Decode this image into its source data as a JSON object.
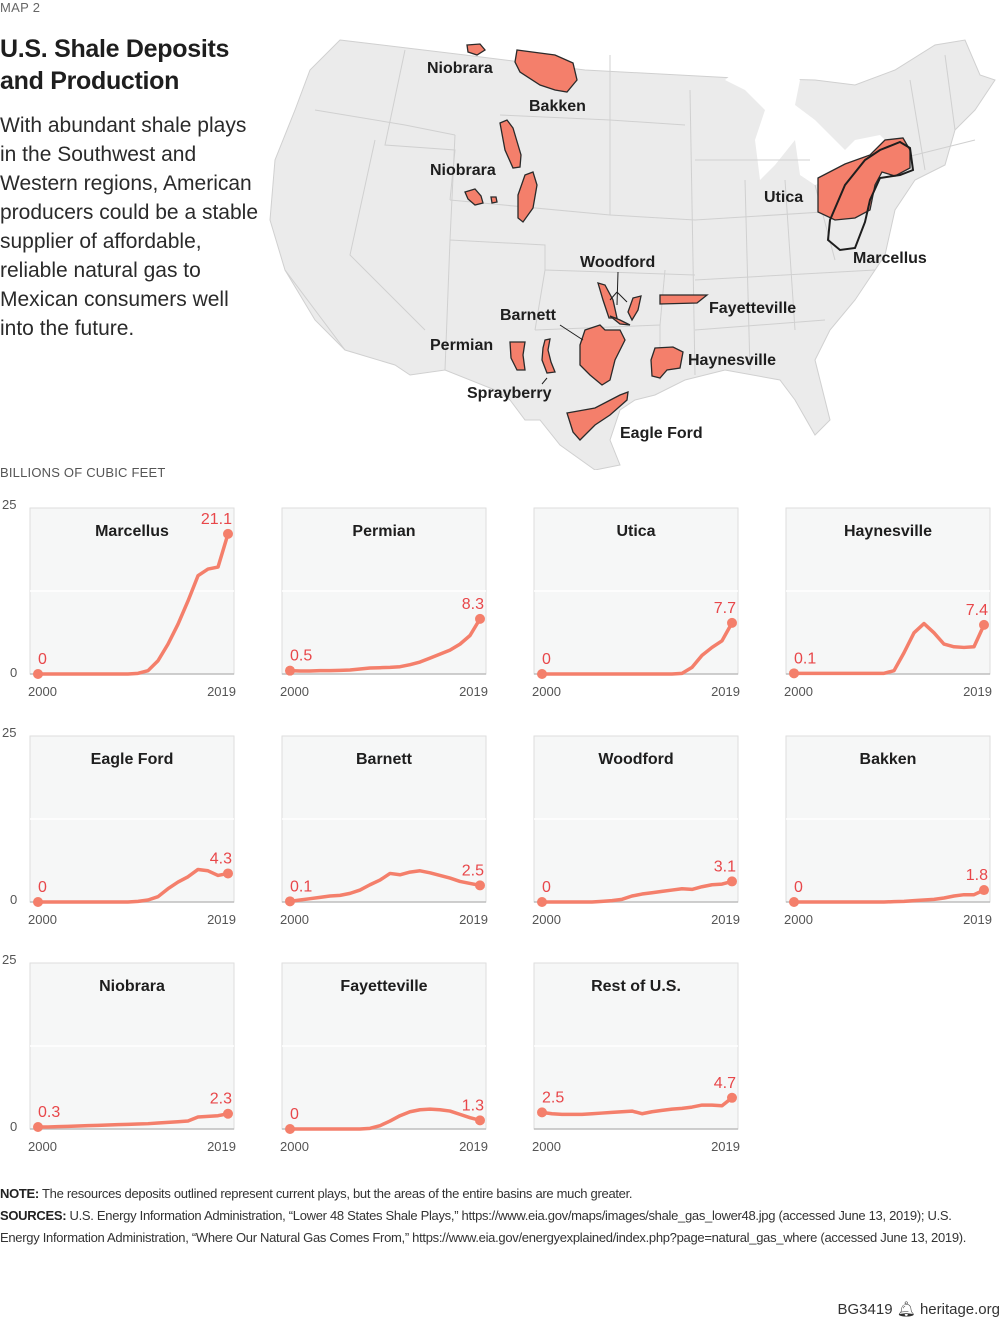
{
  "header": {
    "kicker": "MAP 2",
    "title": "U.S. Shale Deposits and Production",
    "intro": "With abundant shale plays in the Southwest and Western regions, American producers could be a stable supplier of affordable, reliable natural gas to Mexican consumers well into the future."
  },
  "map": {
    "fill_color": "#f47f6b",
    "land_color": "#ebebeb",
    "labels": [
      "Niobrara",
      "Bakken",
      "Niobrara",
      "Utica",
      "Marcellus",
      "Woodford",
      "Fayetteville",
      "Barnett",
      "Permian",
      "Haynesville",
      "Sprayberry",
      "Eagle Ford"
    ]
  },
  "chart_data": {
    "type": "line",
    "units_label": "BILLIONS OF CUBIC FEET",
    "ylim": [
      0,
      25
    ],
    "yticks": [
      "0",
      "25"
    ],
    "gridline": 12.5,
    "x_start_label": "2000",
    "x_end_label": "2019",
    "x": [
      2000,
      2001,
      2002,
      2003,
      2004,
      2005,
      2006,
      2007,
      2008,
      2009,
      2010,
      2011,
      2012,
      2013,
      2014,
      2015,
      2016,
      2017,
      2018,
      2019
    ],
    "line_color": "#f47f6b",
    "label_color": "#e8474a",
    "series": [
      {
        "name": "Marcellus",
        "start_label": "0",
        "end_label": "21.1",
        "values": [
          0,
          0,
          0,
          0,
          0,
          0,
          0,
          0,
          0,
          0,
          0.1,
          0.5,
          2,
          4.5,
          7.5,
          11,
          14.8,
          15.8,
          16.1,
          21.1
        ]
      },
      {
        "name": "Permian",
        "start_label": "0.5",
        "end_label": "8.3",
        "values": [
          0.5,
          0.45,
          0.45,
          0.5,
          0.5,
          0.55,
          0.6,
          0.75,
          0.9,
          0.95,
          1.0,
          1.1,
          1.4,
          1.8,
          2.4,
          3.0,
          3.6,
          4.5,
          5.8,
          8.3
        ]
      },
      {
        "name": "Utica",
        "start_label": "0",
        "end_label": "7.7",
        "values": [
          0,
          0,
          0,
          0,
          0,
          0,
          0,
          0,
          0,
          0,
          0,
          0,
          0,
          0,
          0.1,
          1.0,
          2.8,
          4.0,
          5.0,
          7.7
        ]
      },
      {
        "name": "Haynesville",
        "start_label": "0.1",
        "end_label": "7.4",
        "values": [
          0.1,
          0.1,
          0.1,
          0.1,
          0.1,
          0.1,
          0.1,
          0.1,
          0.1,
          0.1,
          0.5,
          3.2,
          6.2,
          7.6,
          6.2,
          4.5,
          4.1,
          4.0,
          4.1,
          7.4
        ]
      },
      {
        "name": "Eagle Ford",
        "start_label": "0",
        "end_label": "4.3",
        "values": [
          0,
          0,
          0,
          0,
          0,
          0,
          0,
          0,
          0,
          0,
          0.1,
          0.3,
          0.8,
          2.0,
          3.0,
          3.8,
          4.9,
          4.7,
          4.0,
          4.3
        ]
      },
      {
        "name": "Barnett",
        "start_label": "0.1",
        "end_label": "2.5",
        "values": [
          0.1,
          0.3,
          0.5,
          0.7,
          0.9,
          1.0,
          1.3,
          1.8,
          2.6,
          3.3,
          4.3,
          4.1,
          4.5,
          4.7,
          4.4,
          4.0,
          3.6,
          3.1,
          2.8,
          2.5
        ]
      },
      {
        "name": "Woodford",
        "start_label": "0",
        "end_label": "3.1",
        "values": [
          0,
          0,
          0,
          0,
          0,
          0,
          0.1,
          0.2,
          0.4,
          0.9,
          1.2,
          1.4,
          1.6,
          1.8,
          2.0,
          1.9,
          2.3,
          2.6,
          2.7,
          3.1
        ]
      },
      {
        "name": "Bakken",
        "start_label": "0",
        "end_label": "1.8",
        "values": [
          0,
          0,
          0,
          0,
          0,
          0,
          0,
          0,
          0,
          0,
          0.05,
          0.1,
          0.2,
          0.3,
          0.4,
          0.6,
          0.9,
          1.1,
          1.1,
          1.8
        ]
      },
      {
        "name": "Niobrara",
        "start_label": "0.3",
        "end_label": "2.3",
        "values": [
          0.3,
          0.3,
          0.35,
          0.4,
          0.45,
          0.5,
          0.55,
          0.6,
          0.65,
          0.7,
          0.75,
          0.8,
          0.9,
          1.0,
          1.1,
          1.2,
          1.8,
          1.9,
          2.0,
          2.3
        ]
      },
      {
        "name": "Fayetteville",
        "start_label": "0",
        "end_label": "1.3",
        "values": [
          0,
          0,
          0,
          0,
          0,
          0,
          0,
          0,
          0.1,
          0.5,
          1.2,
          2.0,
          2.6,
          2.9,
          3.0,
          2.9,
          2.7,
          2.2,
          1.7,
          1.3
        ]
      },
      {
        "name": "Rest of U.S.",
        "start_label": "2.5",
        "end_label": "4.7",
        "values": [
          2.5,
          2.3,
          2.2,
          2.2,
          2.2,
          2.3,
          2.4,
          2.5,
          2.6,
          2.7,
          2.3,
          2.6,
          2.8,
          3.0,
          3.1,
          3.3,
          3.6,
          3.6,
          3.5,
          4.7
        ]
      }
    ]
  },
  "footer": {
    "note_label": "NOTE:",
    "note_text": "The resources deposits outlined represent current plays, but the areas of the entire basins are much greater.",
    "sources_label": "SOURCES:",
    "sources_text": "U.S. Energy Information Administration, “Lower 48 States Shale Plays,” https://www.eia.gov/maps/images/shale_gas_lower48.jpg (accessed June 13, 2019); U.S. Energy Information Administration, “Where Our Natural Gas Comes From,” https://www.eia.gov/energyexplained/index.php?page=natural_gas_where (accessed June 13, 2019).",
    "report_id": "BG3419",
    "bell_icon": "liberty-bell-icon",
    "site": "heritage.org"
  }
}
